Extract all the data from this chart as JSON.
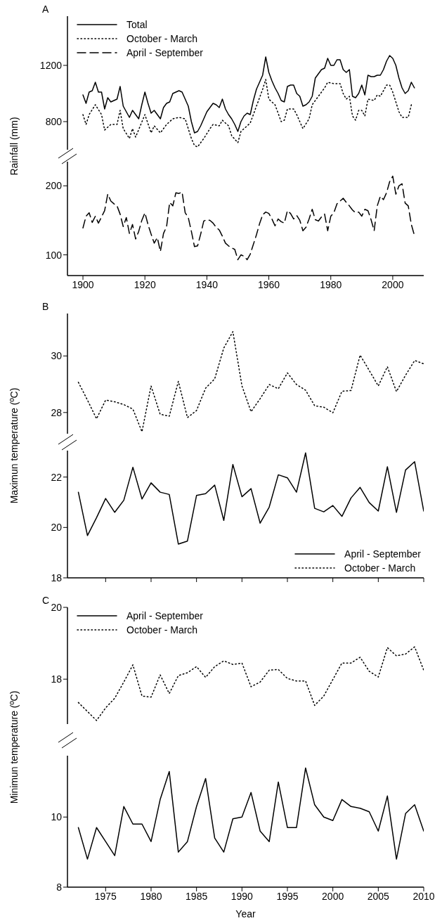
{
  "chart_data": [
    {
      "type": "line",
      "title": "A",
      "ylabel": "Rainfall (mm)",
      "xticks": [
        1900,
        1920,
        1940,
        1960,
        1980,
        2000
      ],
      "ylim": [
        600,
        1550
      ],
      "yticks": [
        800,
        1200
      ],
      "tick_labels": "y",
      "legend": "top left",
      "series": [
        {
          "name": "Total",
          "color": "#000000",
          "line_style": "solid",
          "x": [
            1900,
            1901,
            1902,
            1903,
            1904,
            1905,
            1906,
            1907,
            1908,
            1909,
            1910,
            1911,
            1912,
            1913,
            1914,
            1915,
            1916,
            1917,
            1918,
            1919,
            1920,
            1921,
            1922,
            1923,
            1924,
            1925,
            1926,
            1927,
            1928,
            1929,
            1930,
            1931,
            1932,
            1933,
            1934,
            1935,
            1936,
            1937,
            1938,
            1939,
            1940,
            1941,
            1942,
            1943,
            1944,
            1945,
            1946,
            1947,
            1948,
            1949,
            1950,
            1951,
            1952,
            1953,
            1954,
            1955,
            1956,
            1957,
            1958,
            1959,
            1960,
            1961,
            1962,
            1963,
            1964,
            1965,
            1966,
            1967,
            1968,
            1969,
            1970,
            1971,
            1972,
            1973,
            1974,
            1975,
            1976,
            1977,
            1978,
            1979,
            1980,
            1981,
            1982,
            1983,
            1984,
            1985,
            1986,
            1987,
            1988,
            1989,
            1990,
            1991,
            1992,
            1993,
            1994,
            1995,
            1996,
            1997,
            1998,
            1999,
            2000,
            2001,
            2002,
            2003,
            2004,
            2005,
            2006,
            2007
          ],
          "values": [
            990,
            930,
            1010,
            1020,
            1080,
            1010,
            1010,
            890,
            970,
            940,
            950,
            960,
            1050,
            910,
            870,
            830,
            880,
            850,
            820,
            920,
            1010,
            930,
            860,
            880,
            850,
            820,
            900,
            930,
            940,
            1000,
            1010,
            1020,
            1010,
            960,
            910,
            800,
            720,
            730,
            770,
            820,
            870,
            900,
            930,
            920,
            900,
            960,
            890,
            850,
            820,
            780,
            730,
            800,
            840,
            860,
            850,
            950,
            1030,
            1080,
            1130,
            1260,
            1150,
            1090,
            1040,
            1000,
            950,
            940,
            1050,
            1060,
            1060,
            1000,
            980,
            910,
            920,
            940,
            980,
            1110,
            1140,
            1170,
            1180,
            1250,
            1200,
            1200,
            1240,
            1240,
            1170,
            1150,
            1170,
            980,
            970,
            1000,
            1060,
            990,
            1130,
            1120,
            1120,
            1130,
            1130,
            1170,
            1230,
            1270,
            1250,
            1200,
            1110,
            1040,
            1000,
            1020,
            1080,
            1040
          ]
        },
        {
          "name": "October - March",
          "color": "#000000",
          "line_style": "dotted",
          "x": [
            1900,
            1901,
            1902,
            1904,
            1906,
            1907,
            1909,
            1911,
            1912,
            1913,
            1915,
            1916,
            1917,
            1920,
            1922,
            1923,
            1925,
            1927,
            1929,
            1931,
            1933,
            1935,
            1936,
            1937,
            1939,
            1941,
            1942,
            1944,
            1945,
            1947,
            1948,
            1950,
            1951,
            1954,
            1956,
            1958,
            1959,
            1960,
            1962,
            1964,
            1965,
            1966,
            1968,
            1969,
            1971,
            1973,
            1974,
            1976,
            1978,
            1979,
            1981,
            1983,
            1984,
            1985,
            1986,
            1987,
            1988,
            1989,
            1990,
            1991,
            1992,
            1994,
            1995,
            1996,
            1998,
            1999,
            2000,
            2001,
            2002,
            2003,
            2005,
            2006
          ],
          "values": [
            850,
            780,
            850,
            920,
            850,
            740,
            780,
            780,
            880,
            750,
            680,
            750,
            690,
            850,
            720,
            770,
            720,
            780,
            820,
            830,
            820,
            680,
            630,
            620,
            680,
            750,
            780,
            770,
            810,
            770,
            700,
            650,
            730,
            790,
            910,
            1030,
            1100,
            960,
            920,
            800,
            810,
            890,
            890,
            850,
            750,
            820,
            920,
            980,
            1040,
            1080,
            1070,
            1070,
            1000,
            960,
            980,
            840,
            810,
            880,
            880,
            840,
            960,
            950,
            990,
            980,
            1060,
            1060,
            1010,
            940,
            870,
            830,
            830,
            920
          ]
        }
      ]
    },
    {
      "type": "line",
      "xlim": [
        1895,
        2010
      ],
      "xticks": [
        1900,
        1920,
        1940,
        1960,
        1980,
        2000
      ],
      "ylim": [
        70,
        235
      ],
      "yticks": [
        100,
        200
      ],
      "legend": "top left",
      "series": [
        {
          "name": "April - September",
          "color": "#000000",
          "line_style": "dashed",
          "x": [
            1900,
            1901,
            1902,
            1903,
            1904,
            1905,
            1906,
            1907,
            1908,
            1909,
            1910,
            1911,
            1912,
            1913,
            1914,
            1915,
            1916,
            1917,
            1918,
            1919,
            1920,
            1921,
            1922,
            1923,
            1924,
            1925,
            1926,
            1927,
            1928,
            1929,
            1930,
            1931,
            1932,
            1933,
            1934,
            1935,
            1936,
            1937,
            1938,
            1939,
            1940,
            1941,
            1942,
            1943,
            1944,
            1945,
            1946,
            1947,
            1948,
            1949,
            1950,
            1951,
            1952,
            1953,
            1954,
            1955,
            1956,
            1957,
            1958,
            1959,
            1960,
            1961,
            1962,
            1963,
            1964,
            1965,
            1966,
            1967,
            1968,
            1969,
            1970,
            1971,
            1972,
            1973,
            1974,
            1975,
            1976,
            1977,
            1978,
            1979,
            1980,
            1981,
            1982,
            1983,
            1984,
            1985,
            1986,
            1987,
            1988,
            1989,
            1990,
            1991,
            1992,
            1993,
            1994,
            1995,
            1996,
            1997,
            1998,
            1999,
            2000,
            2001,
            2002,
            2003,
            2004,
            2005,
            2006,
            2007
          ],
          "values": [
            139,
            156,
            161,
            147,
            156,
            146,
            155,
            164,
            188,
            178,
            174,
            171,
            159,
            141,
            154,
            131,
            144,
            123,
            134,
            150,
            161,
            144,
            130,
            117,
            125,
            105,
            131,
            141,
            176,
            171,
            190,
            189,
            191,
            161,
            154,
            134,
            112,
            113,
            130,
            149,
            151,
            150,
            146,
            140,
            136,
            127,
            117,
            113,
            110,
            108,
            93,
            100,
            98,
            93,
            101,
            115,
            129,
            145,
            158,
            162,
            160,
            152,
            142,
            152,
            148,
            146,
            164,
            160,
            152,
            157,
            150,
            135,
            140,
            152,
            166,
            151,
            149,
            155,
            159,
            135,
            156,
            161,
            174,
            178,
            182,
            176,
            171,
            165,
            161,
            162,
            156,
            166,
            164,
            151,
            135,
            171,
            185,
            180,
            190,
            206,
            214,
            188,
            200,
            203,
            175,
            171,
            144,
            128
          ]
        }
      ]
    },
    {
      "type": "line",
      "title": "B",
      "ylabel": "Maximun temperature (ºC)",
      "xlim": [
        1970.8,
        2010
      ],
      "xticks": [
        1975,
        1980,
        1985,
        1990,
        1995,
        2000,
        2005,
        2010
      ],
      "ylim": [
        27.25,
        31.5
      ],
      "yticks": [
        28,
        30
      ],
      "tick_labels": "y",
      "legend": "bottom right",
      "series": [
        {
          "name": "October - March",
          "color": "#000000",
          "line_style": "dotted",
          "x": [
            1972,
            1973,
            1974,
            1975,
            1976,
            1977,
            1978,
            1979,
            1980,
            1981,
            1982,
            1983,
            1984,
            1985,
            1986,
            1987,
            1988,
            1989,
            1990,
            1991,
            1992,
            1993,
            1994,
            1995,
            1996,
            1997,
            1998,
            1999,
            2000,
            2001,
            2002,
            2003,
            2004,
            2005,
            2006,
            2007,
            2008,
            2009,
            2010
          ],
          "values": [
            29.07,
            28.44,
            27.78,
            28.44,
            28.38,
            28.28,
            28.12,
            27.32,
            28.94,
            27.94,
            27.87,
            29.1,
            27.82,
            28.07,
            28.86,
            29.19,
            30.28,
            30.86,
            28.94,
            28.03,
            28.49,
            28.99,
            28.84,
            29.4,
            28.99,
            28.79,
            28.24,
            28.19,
            27.99,
            28.75,
            28.78,
            30.03,
            29.49,
            28.94,
            29.62,
            28.74,
            29.32,
            29.84,
            29.72
          ]
        }
      ]
    },
    {
      "type": "line",
      "xlim": [
        1970.8,
        2010
      ],
      "xticks": [
        1975,
        1980,
        1985,
        1990,
        1995,
        2000,
        2005,
        2010
      ],
      "ylim": [
        18,
        23.05
      ],
      "yticks": [
        18,
        20,
        22
      ],
      "tick_labels": "y",
      "legend": "bottom right",
      "series": [
        {
          "name": "April - September",
          "color": "#000000",
          "line_style": "solid",
          "x": [
            1972,
            1973,
            1974,
            1975,
            1976,
            1977,
            1978,
            1979,
            1980,
            1981,
            1982,
            1983,
            1984,
            1985,
            1986,
            1987,
            1988,
            1989,
            1990,
            1991,
            1992,
            1993,
            1994,
            1995,
            1996,
            1997,
            1998,
            1999,
            2000,
            2001,
            2002,
            2003,
            2004,
            2005,
            2006,
            2007,
            2008,
            2009,
            2010
          ],
          "values": [
            21.4,
            19.68,
            20.39,
            21.15,
            20.6,
            21.08,
            22.39,
            21.13,
            21.77,
            21.4,
            21.31,
            19.34,
            19.46,
            21.27,
            21.34,
            21.68,
            20.28,
            22.5,
            21.22,
            21.54,
            20.17,
            20.81,
            22.09,
            21.97,
            21.4,
            22.96,
            20.76,
            20.62,
            20.87,
            20.44,
            21.17,
            21.59,
            20.99,
            20.65,
            22.41,
            20.6,
            22.28,
            22.61,
            20.65
          ]
        }
      ]
    },
    {
      "type": "line",
      "title": "C",
      "ylabel": "Minimun temperature (ºC)",
      "xlim": [
        1970.8,
        2010
      ],
      "xticks": [
        1975,
        1980,
        1985,
        1990,
        1995,
        2000,
        2005,
        2010
      ],
      "ylim": [
        16.75,
        20
      ],
      "yticks": [
        18,
        20
      ],
      "tick_labels": "y",
      "legend": "top left",
      "series": [
        {
          "name": "October - March",
          "color": "#000000",
          "line_style": "dotted",
          "x": [
            1972,
            1973,
            1974,
            1975,
            1976,
            1977,
            1978,
            1979,
            1980,
            1981,
            1982,
            1983,
            1984,
            1985,
            1986,
            1987,
            1988,
            1989,
            1990,
            1991,
            1992,
            1993,
            1994,
            1995,
            1996,
            1997,
            1998,
            1999,
            2000,
            2001,
            2002,
            2003,
            2004,
            2005,
            2006,
            2007,
            2008,
            2009,
            2010
          ],
          "values": [
            17.35,
            17.1,
            16.85,
            17.2,
            17.47,
            17.92,
            18.4,
            17.53,
            17.5,
            18.12,
            17.6,
            18.1,
            18.18,
            18.35,
            18.05,
            18.35,
            18.51,
            18.41,
            18.45,
            17.79,
            17.92,
            18.25,
            18.27,
            18.02,
            17.95,
            17.95,
            17.27,
            17.53,
            17.99,
            18.45,
            18.45,
            18.61,
            18.22,
            18.06,
            18.88,
            18.65,
            18.7,
            18.9,
            18.25
          ]
        }
      ]
    },
    {
      "type": "line",
      "xlabel": "Year",
      "xlim": [
        1970.8,
        2010
      ],
      "xticks": [
        1975,
        1980,
        1985,
        1990,
        1995,
        2000,
        2005,
        2010
      ],
      "ylim": [
        8,
        11.75
      ],
      "yticks": [
        8,
        10
      ],
      "legend": "top left",
      "series": [
        {
          "name": "April - September",
          "color": "#000000",
          "line_style": "solid",
          "x": [
            1972,
            1973,
            1974,
            1975,
            1976,
            1977,
            1978,
            1979,
            1980,
            1981,
            1982,
            1983,
            1984,
            1985,
            1986,
            1987,
            1988,
            1989,
            1990,
            1991,
            1992,
            1993,
            1994,
            1995,
            1996,
            1997,
            1998,
            1999,
            2000,
            2001,
            2002,
            2003,
            2004,
            2005,
            2006,
            2007,
            2008,
            2009,
            2010
          ],
          "values": [
            9.7,
            8.8,
            9.7,
            9.3,
            8.9,
            10.3,
            9.8,
            9.8,
            9.3,
            10.5,
            11.3,
            9.0,
            9.3,
            10.3,
            11.1,
            9.4,
            9.0,
            9.95,
            10.0,
            10.7,
            9.6,
            9.3,
            11.0,
            9.7,
            9.7,
            11.4,
            10.35,
            10.0,
            9.9,
            10.5,
            10.3,
            10.25,
            10.15,
            9.6,
            10.6,
            8.8,
            10.1,
            10.35,
            9.6
          ]
        }
      ]
    }
  ]
}
